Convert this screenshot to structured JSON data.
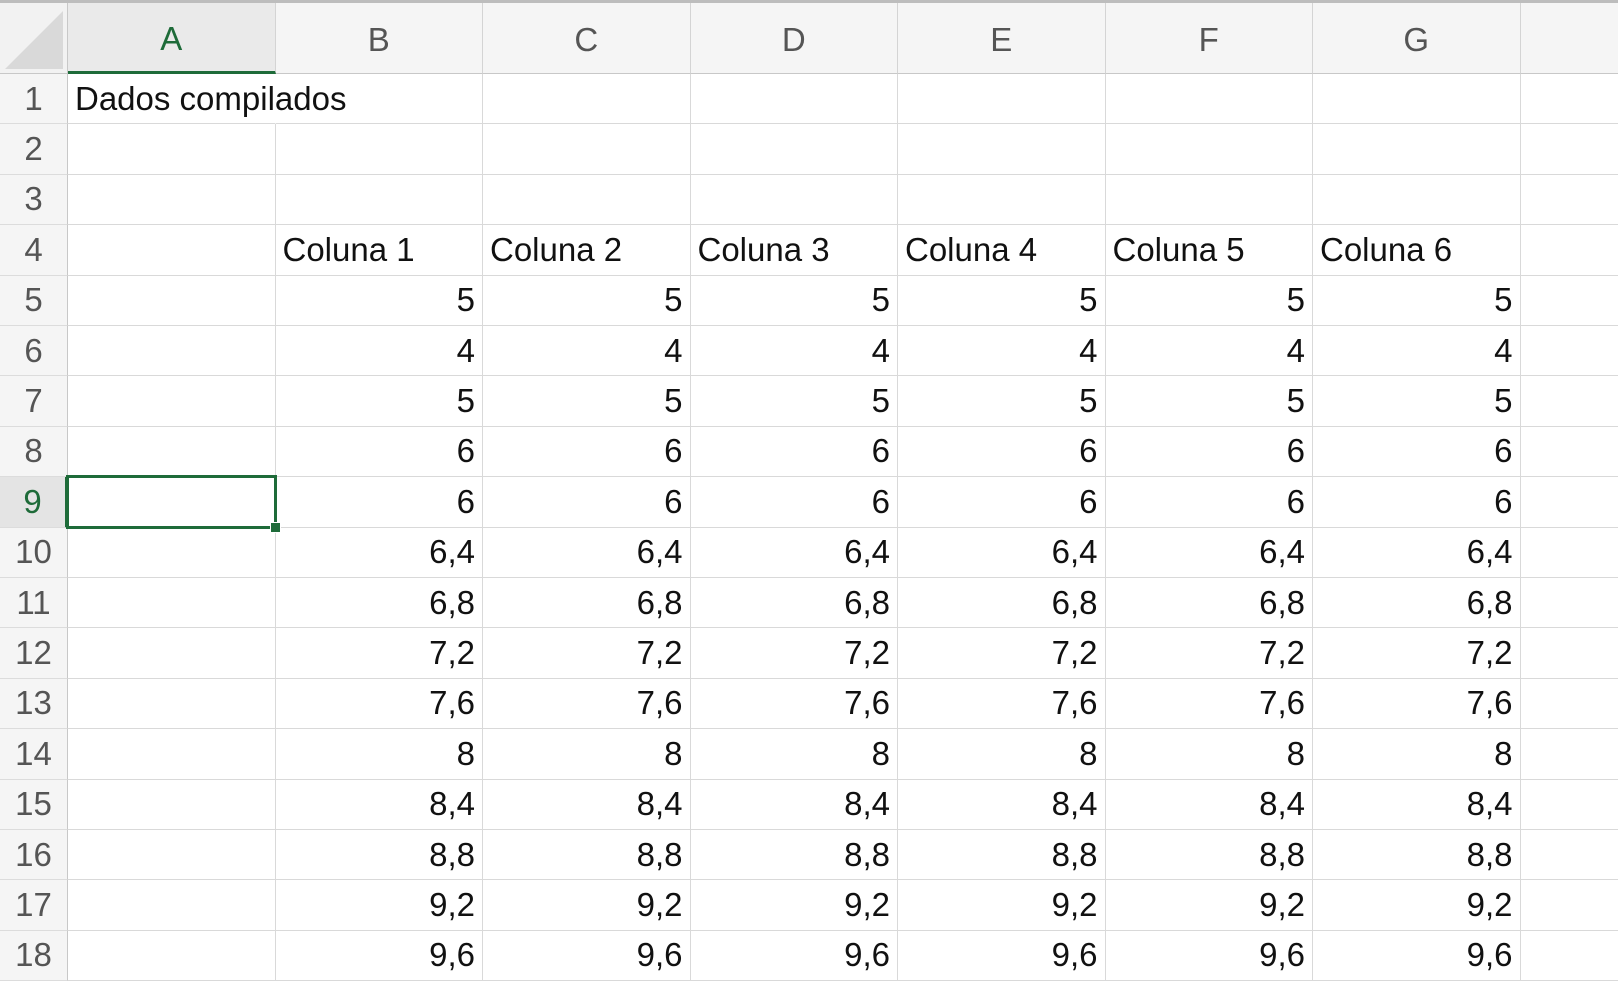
{
  "sheet": {
    "columns": [
      "A",
      "B",
      "C",
      "D",
      "E",
      "F",
      "G"
    ],
    "selected_column": "A",
    "selected_row": 9,
    "selected_cell": "A9",
    "accent_color": "#1e6b39",
    "rows": [
      {
        "num": "1",
        "cells": [
          "Dados compilados",
          "",
          "",
          "",
          "",
          "",
          ""
        ]
      },
      {
        "num": "2",
        "cells": [
          "",
          "",
          "",
          "",
          "",
          "",
          ""
        ]
      },
      {
        "num": "3",
        "cells": [
          "",
          "",
          "",
          "",
          "",
          "",
          ""
        ]
      },
      {
        "num": "4",
        "cells": [
          "",
          "Coluna 1",
          "Coluna 2",
          "Coluna 3",
          "Coluna 4",
          "Coluna 5",
          "Coluna 6"
        ]
      },
      {
        "num": "5",
        "cells": [
          "",
          "5",
          "5",
          "5",
          "5",
          "5",
          "5"
        ]
      },
      {
        "num": "6",
        "cells": [
          "",
          "4",
          "4",
          "4",
          "4",
          "4",
          "4"
        ]
      },
      {
        "num": "7",
        "cells": [
          "",
          "5",
          "5",
          "5",
          "5",
          "5",
          "5"
        ]
      },
      {
        "num": "8",
        "cells": [
          "",
          "6",
          "6",
          "6",
          "6",
          "6",
          "6"
        ]
      },
      {
        "num": "9",
        "cells": [
          "",
          "6",
          "6",
          "6",
          "6",
          "6",
          "6"
        ]
      },
      {
        "num": "10",
        "cells": [
          "",
          "6,4",
          "6,4",
          "6,4",
          "6,4",
          "6,4",
          "6,4"
        ]
      },
      {
        "num": "11",
        "cells": [
          "",
          "6,8",
          "6,8",
          "6,8",
          "6,8",
          "6,8",
          "6,8"
        ]
      },
      {
        "num": "12",
        "cells": [
          "",
          "7,2",
          "7,2",
          "7,2",
          "7,2",
          "7,2",
          "7,2"
        ]
      },
      {
        "num": "13",
        "cells": [
          "",
          "7,6",
          "7,6",
          "7,6",
          "7,6",
          "7,6",
          "7,6"
        ]
      },
      {
        "num": "14",
        "cells": [
          "",
          "8",
          "8",
          "8",
          "8",
          "8",
          "8"
        ]
      },
      {
        "num": "15",
        "cells": [
          "",
          "8,4",
          "8,4",
          "8,4",
          "8,4",
          "8,4",
          "8,4"
        ]
      },
      {
        "num": "16",
        "cells": [
          "",
          "8,8",
          "8,8",
          "8,8",
          "8,8",
          "8,8",
          "8,8"
        ]
      },
      {
        "num": "17",
        "cells": [
          "",
          "9,2",
          "9,2",
          "9,2",
          "9,2",
          "9,2",
          "9,2"
        ]
      },
      {
        "num": "18",
        "cells": [
          "",
          "9,6",
          "9,6",
          "9,6",
          "9,6",
          "9,6",
          "9,6"
        ]
      }
    ]
  }
}
